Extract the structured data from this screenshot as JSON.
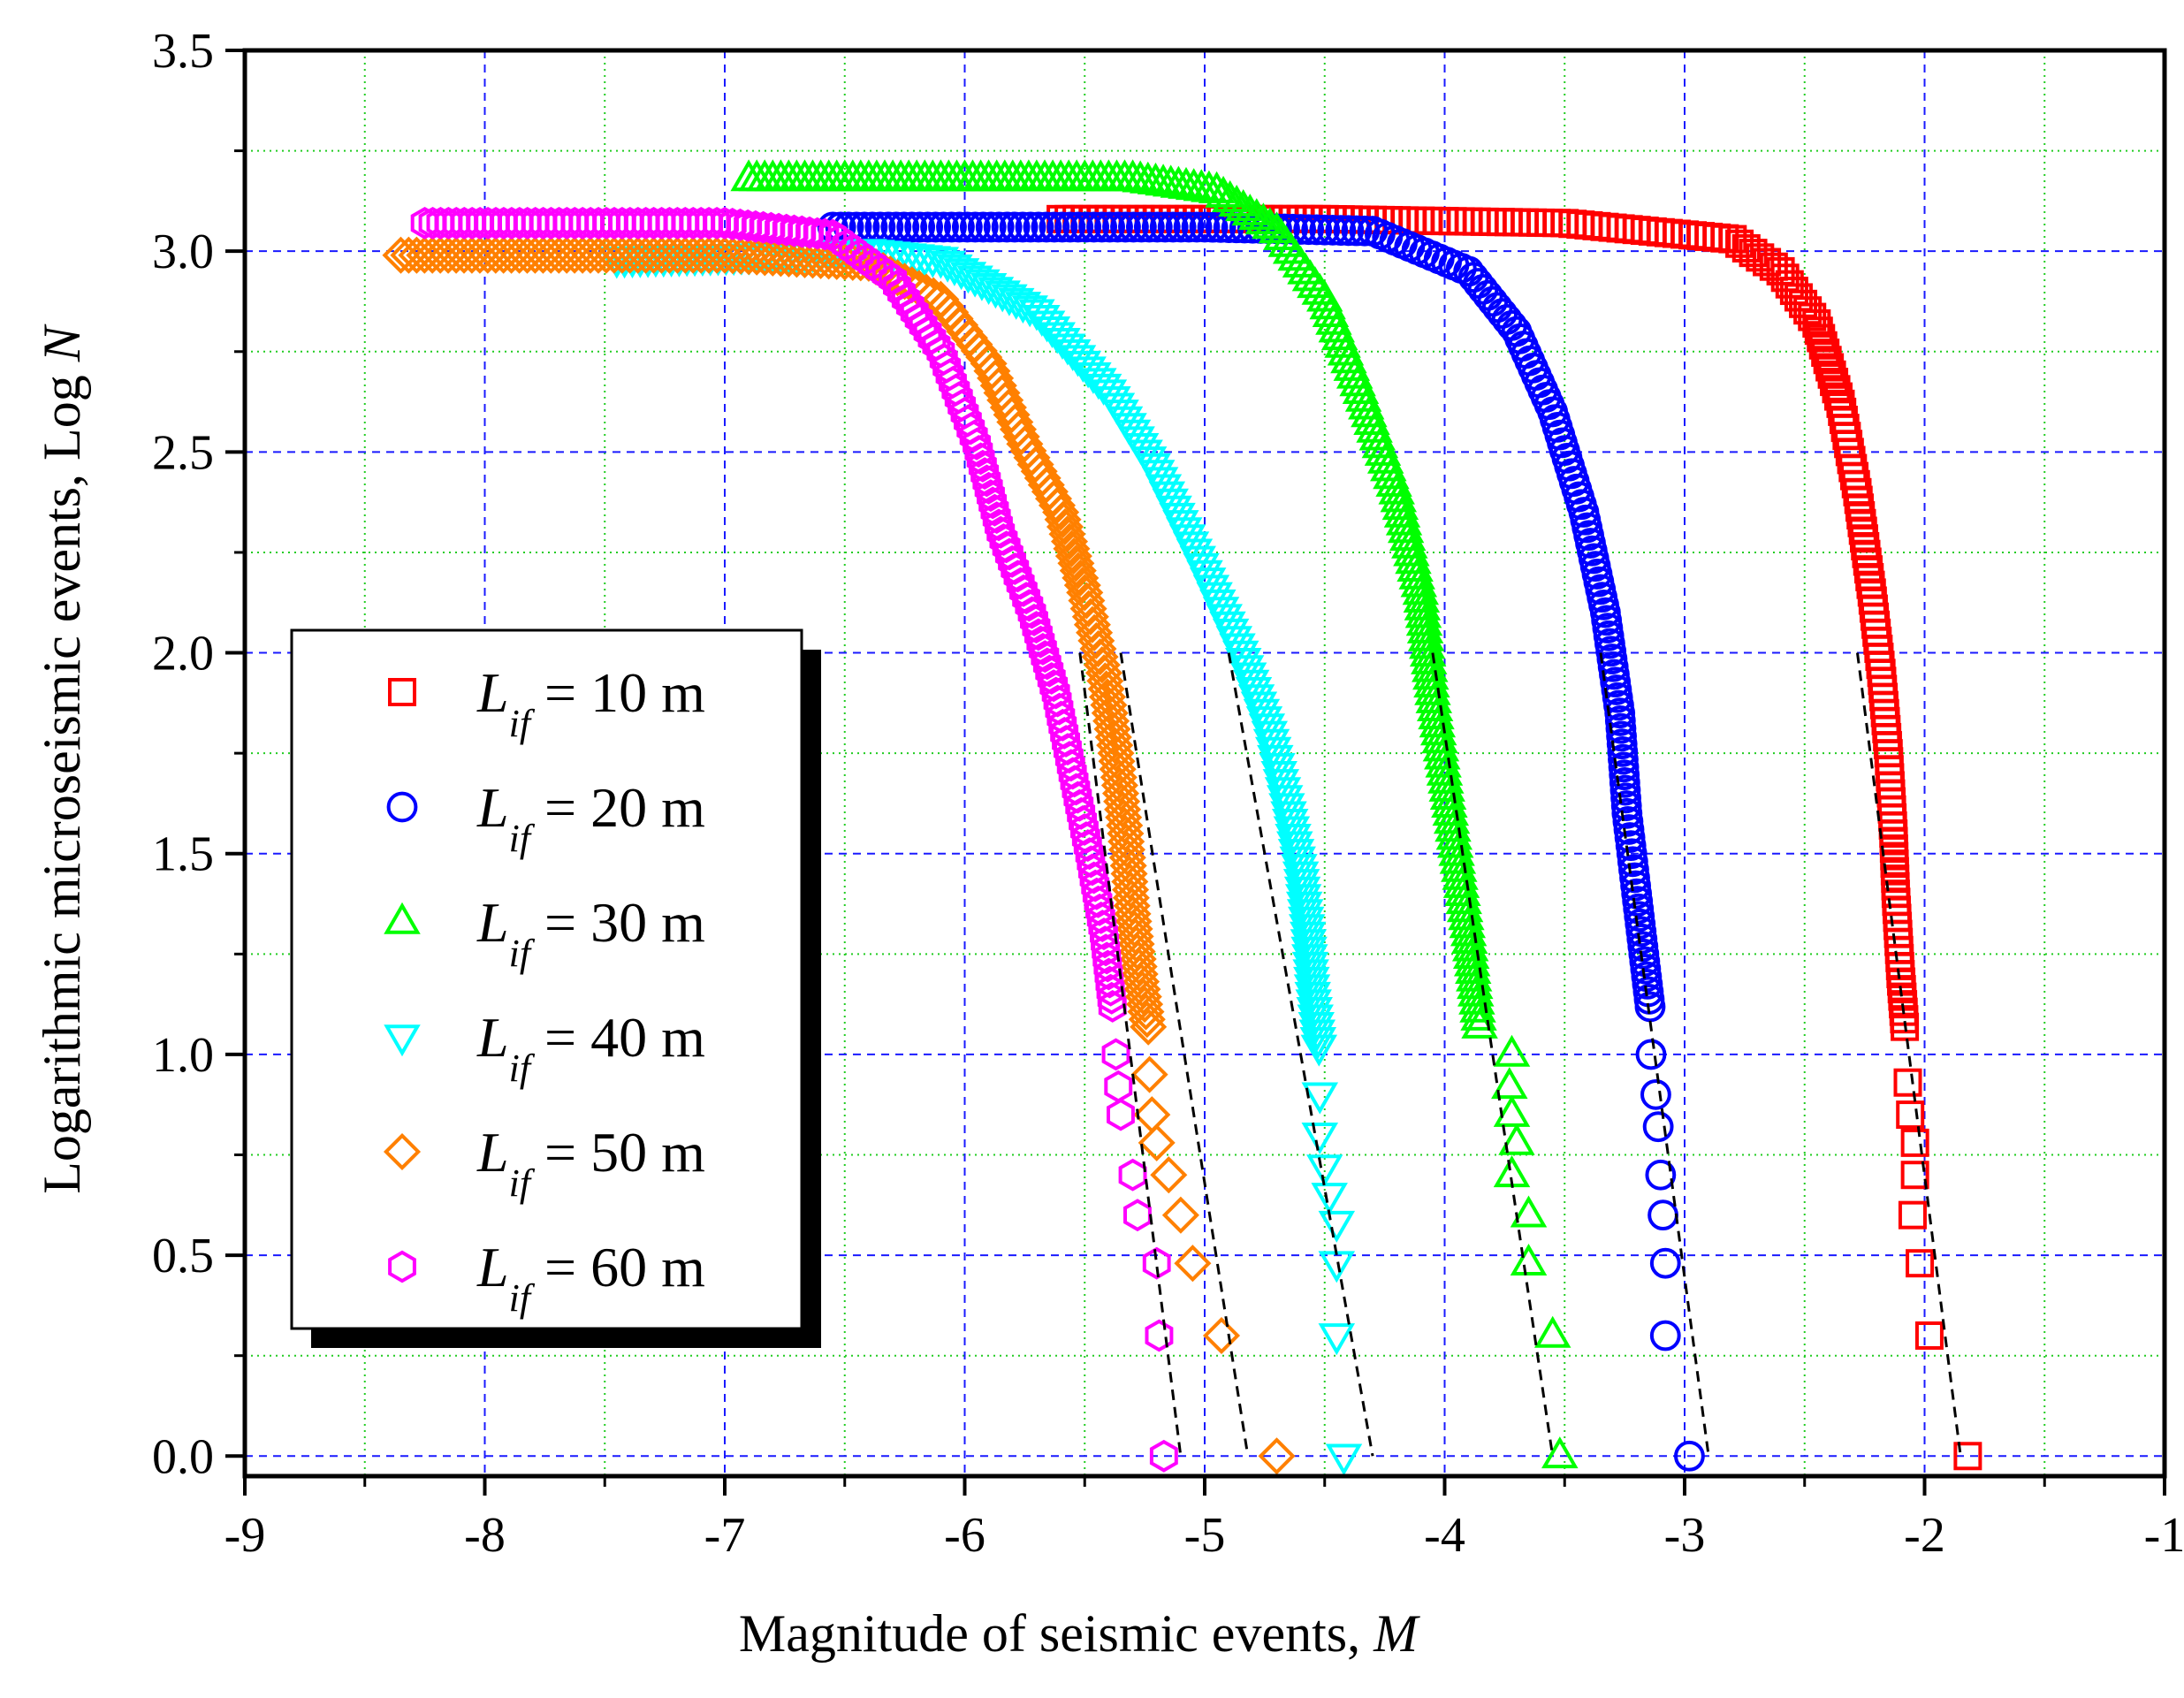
{
  "chart_data": {
    "type": "scatter",
    "title": "",
    "xlabel": "Magnitude of seismic events, ",
    "xlabel_var": "M",
    "ylabel": "Logarithmic microseismic events, Log ",
    "ylabel_var": "N",
    "xlim": [
      -9,
      -1
    ],
    "ylim": [
      -0.05,
      3.5
    ],
    "x_ticks": [
      -9,
      -8,
      -7,
      -6,
      -5,
      -4,
      -3,
      -2,
      -1
    ],
    "x_tick_labels": [
      "-9",
      "-8",
      "-7",
      "-6",
      "-5",
      "-4",
      "-3",
      "-2",
      "-1"
    ],
    "y_ticks": [
      0,
      0.5,
      1,
      1.5,
      2,
      2.5,
      3,
      3.5
    ],
    "y_tick_labels": [
      "0.0",
      "0.5",
      "1.0",
      "1.5",
      "2.0",
      "2.5",
      "3.0",
      "3.5"
    ],
    "grid": true,
    "legend_position": "middle-left",
    "series": [
      {
        "name": "L_if = 10 m",
        "legend_var": "L",
        "legend_sub": "if",
        "legend_rest": " = 10 m",
        "marker": "square",
        "color": "#ff0000",
        "curve": [
          [
            -5.6,
            3.08
          ],
          [
            -4.5,
            3.08
          ],
          [
            -3.5,
            3.07
          ],
          [
            -2.8,
            3.03
          ],
          [
            -2.6,
            2.95
          ],
          [
            -2.45,
            2.82
          ],
          [
            -2.35,
            2.62
          ],
          [
            -2.28,
            2.4
          ],
          [
            -2.22,
            2.15
          ],
          [
            -2.18,
            1.95
          ],
          [
            -2.15,
            1.75
          ],
          [
            -2.13,
            1.55
          ],
          [
            -2.12,
            1.4
          ],
          [
            -2.1,
            1.2
          ],
          [
            -2.08,
            1.05
          ]
        ],
        "tail": [
          [
            -2.07,
            0.93
          ],
          [
            -2.06,
            0.85
          ],
          [
            -2.04,
            0.78
          ],
          [
            -2.04,
            0.7
          ],
          [
            -2.05,
            0.6
          ],
          [
            -2.02,
            0.48
          ],
          [
            -1.98,
            0.3
          ],
          [
            -1.82,
            0.0
          ]
        ],
        "fit": [
          [
            -2.28,
            2.0
          ],
          [
            -1.85,
            0.0
          ]
        ]
      },
      {
        "name": "L_if = 20 m",
        "legend_var": "L",
        "legend_sub": "if",
        "legend_rest": " = 20 m",
        "marker": "circle",
        "color": "#0000ff",
        "curve": [
          [
            -6.55,
            3.06
          ],
          [
            -5.0,
            3.06
          ],
          [
            -4.3,
            3.05
          ],
          [
            -3.9,
            2.95
          ],
          [
            -3.7,
            2.8
          ],
          [
            -3.55,
            2.6
          ],
          [
            -3.42,
            2.35
          ],
          [
            -3.33,
            2.1
          ],
          [
            -3.27,
            1.85
          ],
          [
            -3.24,
            1.6
          ],
          [
            -3.2,
            1.4
          ],
          [
            -3.17,
            1.25
          ],
          [
            -3.14,
            1.1
          ]
        ],
        "tail": [
          [
            -3.14,
            1.0
          ],
          [
            -3.12,
            0.9
          ],
          [
            -3.11,
            0.82
          ],
          [
            -3.1,
            0.7
          ],
          [
            -3.09,
            0.6
          ],
          [
            -3.08,
            0.48
          ],
          [
            -3.08,
            0.3
          ],
          [
            -2.98,
            0.0
          ]
        ],
        "fit": [
          [
            -3.35,
            2.0
          ],
          [
            -2.9,
            0.0
          ]
        ]
      },
      {
        "name": "L_if = 30 m",
        "legend_var": "L",
        "legend_sub": "if",
        "legend_rest": " = 30 m",
        "marker": "triangle-up",
        "color": "#00ff00",
        "curve": [
          [
            -6.9,
            3.18
          ],
          [
            -5.3,
            3.18
          ],
          [
            -4.95,
            3.15
          ],
          [
            -4.7,
            3.05
          ],
          [
            -4.5,
            2.88
          ],
          [
            -4.35,
            2.65
          ],
          [
            -4.2,
            2.4
          ],
          [
            -4.1,
            2.15
          ],
          [
            -4.05,
            1.9
          ],
          [
            -4.0,
            1.7
          ],
          [
            -3.95,
            1.5
          ],
          [
            -3.9,
            1.3
          ],
          [
            -3.87,
            1.15
          ],
          [
            -3.85,
            1.05
          ]
        ],
        "tail": [
          [
            -3.72,
            1.0
          ],
          [
            -3.73,
            0.92
          ],
          [
            -3.72,
            0.85
          ],
          [
            -3.7,
            0.78
          ],
          [
            -3.72,
            0.7
          ],
          [
            -3.65,
            0.6
          ],
          [
            -3.65,
            0.48
          ],
          [
            -3.55,
            0.3
          ],
          [
            -3.52,
            0.0
          ]
        ],
        "fit": [
          [
            -4.05,
            2.0
          ],
          [
            -3.55,
            0.0
          ]
        ]
      },
      {
        "name": "L_if = 40 m",
        "legend_var": "L",
        "legend_sub": "if",
        "legend_rest": " = 40 m",
        "marker": "triangle-down",
        "color": "#00ffff",
        "curve": [
          [
            -7.45,
            2.98
          ],
          [
            -6.8,
            2.99
          ],
          [
            -6.4,
            3.0
          ],
          [
            -6.1,
            2.98
          ],
          [
            -5.7,
            2.85
          ],
          [
            -5.4,
            2.65
          ],
          [
            -5.2,
            2.45
          ],
          [
            -5.0,
            2.2
          ],
          [
            -4.85,
            2.0
          ],
          [
            -4.73,
            1.8
          ],
          [
            -4.65,
            1.6
          ],
          [
            -4.6,
            1.45
          ],
          [
            -4.57,
            1.3
          ],
          [
            -4.55,
            1.15
          ],
          [
            -4.52,
            1.0
          ]
        ],
        "tail": [
          [
            -4.52,
            0.9
          ],
          [
            -4.52,
            0.8
          ],
          [
            -4.5,
            0.72
          ],
          [
            -4.48,
            0.65
          ],
          [
            -4.45,
            0.58
          ],
          [
            -4.45,
            0.48
          ],
          [
            -4.45,
            0.3
          ],
          [
            -4.42,
            0.0
          ]
        ],
        "fit": [
          [
            -4.9,
            2.0
          ],
          [
            -4.3,
            0.0
          ]
        ]
      },
      {
        "name": "L_if = 50 m",
        "legend_var": "L",
        "legend_sub": "if",
        "legend_rest": " = 50 m",
        "marker": "diamond",
        "color": "#ff8000",
        "curve": [
          [
            -8.35,
            2.99
          ],
          [
            -7.0,
            2.99
          ],
          [
            -6.4,
            2.97
          ],
          [
            -6.1,
            2.88
          ],
          [
            -5.9,
            2.72
          ],
          [
            -5.75,
            2.52
          ],
          [
            -5.6,
            2.35
          ],
          [
            -5.5,
            2.15
          ],
          [
            -5.42,
            1.95
          ],
          [
            -5.37,
            1.75
          ],
          [
            -5.33,
            1.55
          ],
          [
            -5.3,
            1.35
          ],
          [
            -5.27,
            1.2
          ],
          [
            -5.23,
            1.05
          ]
        ],
        "tail": [
          [
            -5.23,
            0.95
          ],
          [
            -5.22,
            0.85
          ],
          [
            -5.2,
            0.78
          ],
          [
            -5.15,
            0.7
          ],
          [
            -5.1,
            0.6
          ],
          [
            -5.05,
            0.48
          ],
          [
            -4.93,
            0.3
          ],
          [
            -4.7,
            0.0
          ]
        ],
        "fit": [
          [
            -5.35,
            2.0
          ],
          [
            -4.82,
            0.0
          ]
        ]
      },
      {
        "name": "L_if = 60 m",
        "legend_var": "L",
        "legend_sub": "if",
        "legend_rest": " = 60 m",
        "marker": "hexagon",
        "color": "#ff00ff",
        "curve": [
          [
            -8.25,
            3.07
          ],
          [
            -7.0,
            3.07
          ],
          [
            -6.55,
            3.04
          ],
          [
            -6.3,
            2.93
          ],
          [
            -6.1,
            2.75
          ],
          [
            -5.95,
            2.52
          ],
          [
            -5.85,
            2.3
          ],
          [
            -5.72,
            2.1
          ],
          [
            -5.62,
            1.9
          ],
          [
            -5.55,
            1.7
          ],
          [
            -5.48,
            1.5
          ],
          [
            -5.42,
            1.3
          ],
          [
            -5.38,
            1.1
          ]
        ],
        "tail": [
          [
            -5.37,
            1.0
          ],
          [
            -5.36,
            0.92
          ],
          [
            -5.35,
            0.85
          ],
          [
            -5.3,
            0.7
          ],
          [
            -5.28,
            0.6
          ],
          [
            -5.2,
            0.48
          ],
          [
            -5.19,
            0.3
          ],
          [
            -5.17,
            0.0
          ]
        ],
        "fit": [
          [
            -5.52,
            2.0
          ],
          [
            -5.1,
            0.0
          ]
        ]
      }
    ]
  }
}
